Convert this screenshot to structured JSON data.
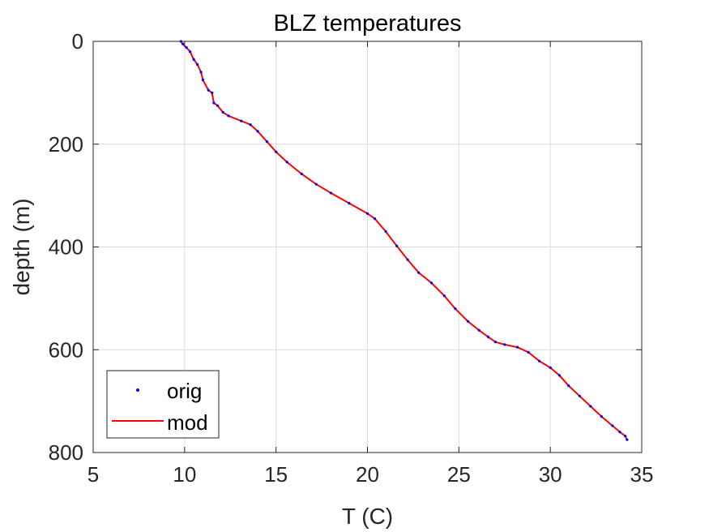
{
  "chart_data": {
    "type": "line",
    "title": "BLZ temperatures",
    "xlabel": "T (C)",
    "ylabel": "depth (m)",
    "xlim": [
      5,
      35
    ],
    "ylim": [
      0,
      800
    ],
    "y_reversed": true,
    "xticks": [
      "5",
      "10",
      "15",
      "20",
      "25",
      "30",
      "35"
    ],
    "yticks": [
      "0",
      "200",
      "400",
      "600",
      "800"
    ],
    "grid": true,
    "legend_position": "bottom-left",
    "series": [
      {
        "name": "orig",
        "style": "points",
        "color": "#0000ff",
        "x": [
          9.8,
          9.9,
          10.1,
          10.3,
          10.5,
          10.7,
          10.9,
          11.0,
          11.3,
          11.5,
          11.6,
          11.8,
          12.1,
          12.4,
          13.1,
          13.6,
          14.0,
          14.5,
          15.0,
          15.6,
          16.4,
          17.2,
          18.0,
          19.0,
          20.0,
          20.4,
          21.0,
          21.6,
          22.2,
          22.8,
          23.5,
          24.2,
          24.8,
          25.5,
          26.1,
          26.6,
          27.0,
          27.5,
          28.2,
          28.8,
          29.4,
          30.0,
          30.5,
          31.0,
          31.6,
          32.2,
          32.8,
          33.4,
          33.8,
          34.1,
          34.2
        ],
        "y": [
          0,
          5,
          12,
          20,
          35,
          45,
          60,
          75,
          95,
          100,
          120,
          125,
          138,
          145,
          155,
          162,
          175,
          195,
          215,
          235,
          258,
          278,
          295,
          315,
          335,
          345,
          370,
          398,
          425,
          450,
          470,
          495,
          520,
          545,
          562,
          575,
          585,
          590,
          595,
          605,
          622,
          635,
          650,
          670,
          690,
          710,
          730,
          748,
          760,
          768,
          775
        ]
      },
      {
        "name": "mod",
        "style": "line",
        "color": "#ff0000",
        "x": [
          9.8,
          9.9,
          10.1,
          10.3,
          10.5,
          10.7,
          10.9,
          11.0,
          11.3,
          11.5,
          11.6,
          11.8,
          12.1,
          12.4,
          13.1,
          13.6,
          14.0,
          14.5,
          15.0,
          15.6,
          16.4,
          17.2,
          18.0,
          19.0,
          20.0,
          20.4,
          21.0,
          21.6,
          22.2,
          22.8,
          23.5,
          24.2,
          24.8,
          25.5,
          26.1,
          26.6,
          27.0,
          27.5,
          28.2,
          28.8,
          29.4,
          30.0,
          30.5,
          31.0,
          31.6,
          32.2,
          32.8,
          33.4,
          33.8,
          34.1,
          34.2
        ],
        "y": [
          0,
          5,
          12,
          20,
          35,
          45,
          60,
          75,
          95,
          100,
          120,
          125,
          138,
          145,
          155,
          162,
          175,
          195,
          215,
          235,
          258,
          278,
          295,
          315,
          335,
          345,
          370,
          398,
          425,
          450,
          470,
          495,
          520,
          545,
          562,
          575,
          585,
          590,
          595,
          605,
          622,
          635,
          650,
          670,
          690,
          710,
          730,
          748,
          760,
          768,
          775
        ]
      }
    ]
  }
}
